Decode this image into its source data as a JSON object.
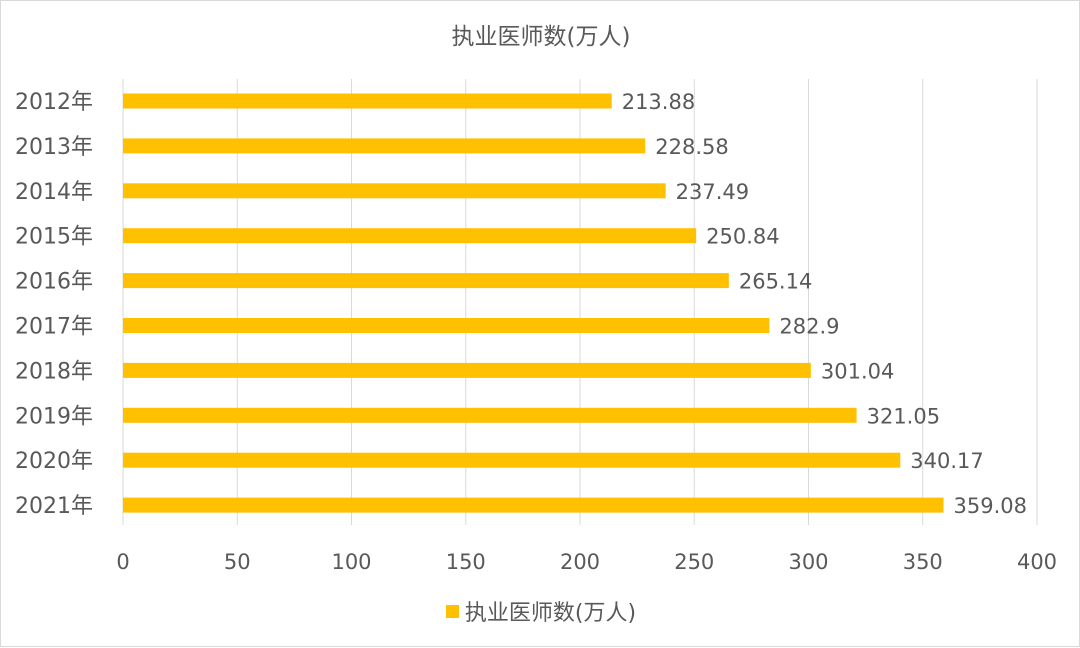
{
  "chart_data": {
    "type": "bar",
    "orientation": "horizontal",
    "title": "执业医师数(万人)",
    "categories": [
      "2012年",
      "2013年",
      "2014年",
      "2015年",
      "2016年",
      "2017年",
      "2018年",
      "2019年",
      "2020年",
      "2021年"
    ],
    "series": [
      {
        "name": "执业医师数(万人)",
        "values": [
          213.88,
          228.58,
          237.49,
          250.84,
          265.14,
          282.9,
          301.04,
          321.05,
          340.17,
          359.08
        ],
        "labels": [
          "213.88",
          "228.58",
          "237.49",
          "250.84",
          "265.14",
          "282.9",
          "301.04",
          "321.05",
          "340.17",
          "359.08"
        ]
      }
    ],
    "xlim": [
      0,
      400
    ],
    "xticks": [
      "0",
      "50",
      "100",
      "150",
      "200",
      "250",
      "300",
      "350",
      "400"
    ],
    "xtick_values": [
      0,
      50,
      100,
      150,
      200,
      250,
      300,
      350,
      400
    ],
    "grid": "vertical",
    "legend_position": "bottom",
    "bar_color": "#FFC000",
    "grid_color": "#D9D9D9",
    "text_color": "#595959"
  }
}
